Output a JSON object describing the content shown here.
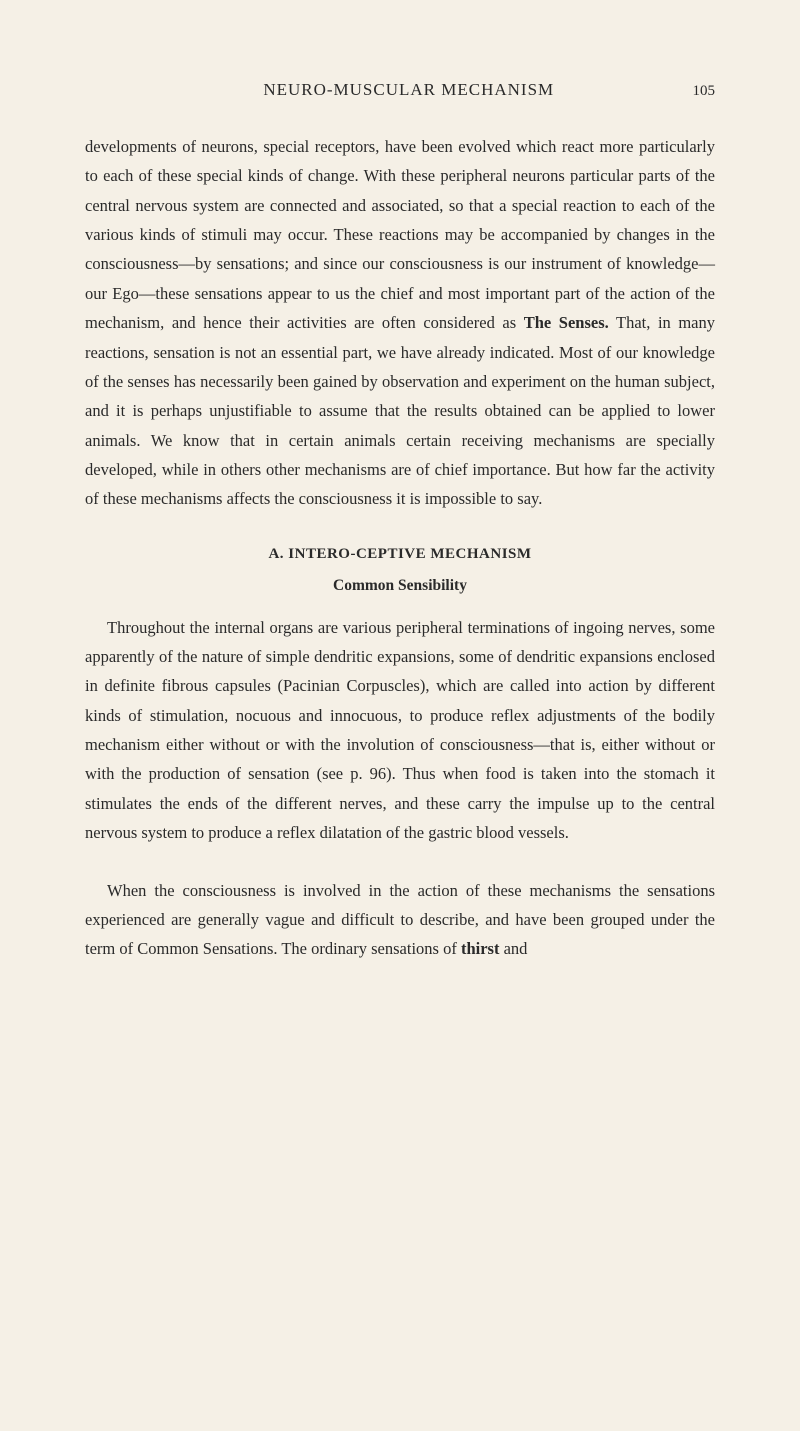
{
  "header": {
    "running_title": "NEURO-MUSCULAR MECHANISM",
    "page_number": "105"
  },
  "paragraphs": {
    "p1_part1": "developments of neurons, special receptors, have been evolved which react more particularly to each of these special kinds of change. With these peripheral neurons particular parts of the central nervous system are connected and associated, so that a special reaction to each of the various kinds of stimuli may occur. These reactions may be accompanied by changes in the consciousness—by sensations; and since our consciousness is our instrument of knowledge—our Ego—these sensations appear to us the chief and most important part of the action of the mechanism, and hence their activities are often considered as ",
    "p1_bold": "The Senses.",
    "p1_part2": " That, in many reactions, sensation is not an essential part, we have already indicated. Most of our know­ledge of the senses has necessarily been gained by observation and experiment on the human subject, and it is perhaps unjustifiable to assume that the results obtained can be applied to lower animals. We know that in certain animals certain receiving mechanisms are specially developed, while in others other mechanisms are of chief importance. But how far the activity of these mechanisms affects the consciousness it is impossible to say.",
    "section_a": "A. INTERO-CEPTIVE MECHANISM",
    "sub_common": "Common Sensibility",
    "p2": "Throughout the internal organs are various peripheral terminations of ingoing nerves, some apparently of the nature of simple dendritic expansions, some of dendritic expansions enclosed in definite fibrous capsules (Pacinian Corpuscles), which are called into action by different kinds of stimulation, nocuous and innocuous, to produce reflex adjustments of the bodily mechanism either without or with the involution of consciousness—that is, either without or with the production of sensation (see p. 96). Thus when food is taken into the stomach it stimulates the ends of the different nerves, and these carry the impulse up to the central nervous system to produce a reflex dilatation of the gastric blood vessels.",
    "p3_part1": "When the consciousness is involved in the action of these mechanisms the sensations experienced are generally vague and difficult to describe, and have been grouped under the term of Common Sensations. The ordinary sensations of ",
    "p3_bold": "thirst",
    "p3_part2": " and"
  }
}
